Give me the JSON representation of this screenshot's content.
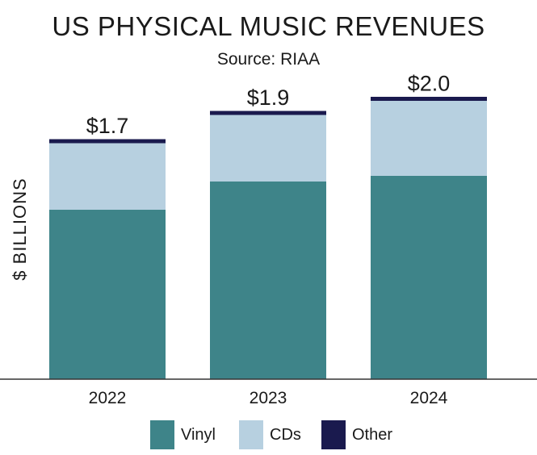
{
  "chart_data": {
    "type": "bar",
    "stacked": true,
    "title": "US PHYSICAL MUSIC REVENUES",
    "subtitle": "Source: RIAA",
    "ylabel": "$ BILLIONS",
    "xlabel": "",
    "categories": [
      "2022",
      "2023",
      "2024"
    ],
    "totals_labels": [
      "$1.7",
      "$1.9",
      "$2.0"
    ],
    "totals": [
      1.7,
      1.9,
      2.0
    ],
    "series": [
      {
        "name": "Vinyl",
        "color": "#3e8489",
        "values": [
          1.2,
          1.4,
          1.44
        ]
      },
      {
        "name": "CDs",
        "color": "#b7d0e0",
        "values": [
          0.48,
          0.48,
          0.54
        ]
      },
      {
        "name": "Other",
        "color": "#1a1a4e",
        "values": [
          0.02,
          0.02,
          0.02
        ]
      }
    ],
    "ylim": [
      0,
      2.1
    ],
    "grid": false,
    "legend_position": "bottom"
  }
}
